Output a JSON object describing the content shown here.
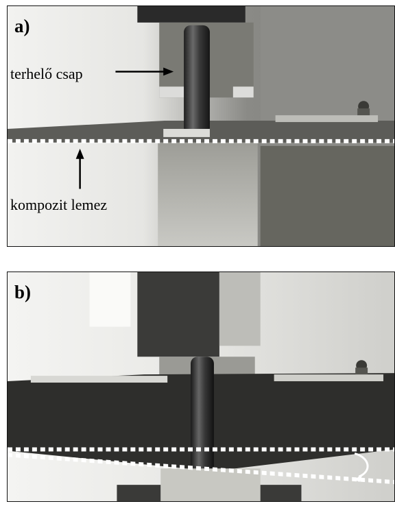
{
  "panel_a": {
    "label": "a)",
    "pin_label": "terhelő csap",
    "plate_label": "kompozit lemez"
  },
  "panel_b": {
    "label": "b)"
  },
  "colors": {
    "label_text": "#000000",
    "dashed_line": "#ffffff",
    "arrow": "#000000",
    "rotation_arrow": "#ffffff"
  }
}
